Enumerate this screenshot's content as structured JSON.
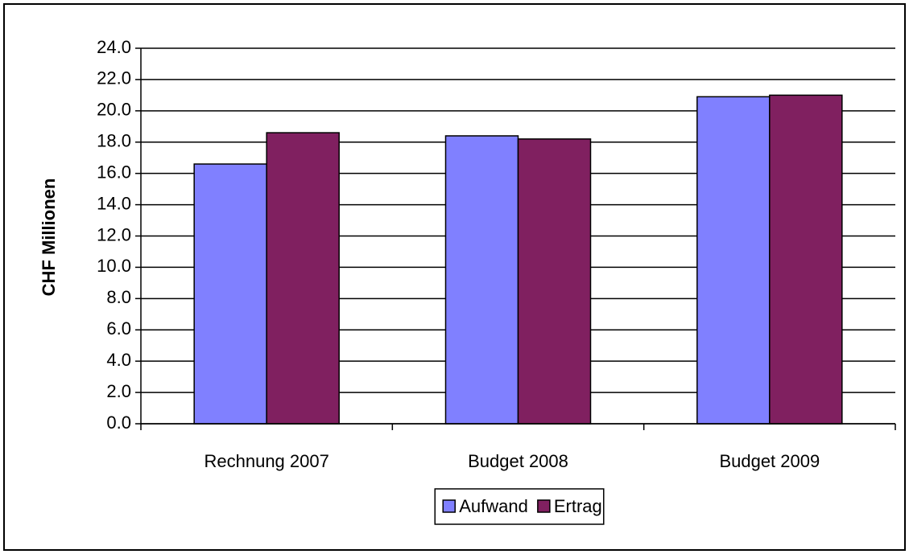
{
  "chart_data": {
    "type": "bar",
    "y_label": "CHF Millionen",
    "categories": [
      "Rechnung 2007",
      "Budget 2008",
      "Budget 2009"
    ],
    "series": [
      {
        "name": "Aufwand",
        "color": "#8080ff",
        "values": [
          16.6,
          18.4,
          20.9
        ]
      },
      {
        "name": "Ertrag",
        "color": "#802060",
        "values": [
          18.6,
          18.2,
          21.0
        ]
      }
    ],
    "ylim": [
      0,
      24
    ],
    "yticks": [
      {
        "value": 0,
        "label": "0.0"
      },
      {
        "value": 2,
        "label": "2.0"
      },
      {
        "value": 4,
        "label": "4.0"
      },
      {
        "value": 6,
        "label": "6.0"
      },
      {
        "value": 8,
        "label": "8.0"
      },
      {
        "value": 10,
        "label": "10.0"
      },
      {
        "value": 12,
        "label": "12.0"
      },
      {
        "value": 14,
        "label": "14.0"
      },
      {
        "value": 16,
        "label": "16.0"
      },
      {
        "value": 18,
        "label": "18.0"
      },
      {
        "value": 20,
        "label": "20.0"
      },
      {
        "value": 22,
        "label": "22.0"
      },
      {
        "value": 24,
        "label": "24.0"
      }
    ],
    "grid": true,
    "legend": "bottom"
  }
}
